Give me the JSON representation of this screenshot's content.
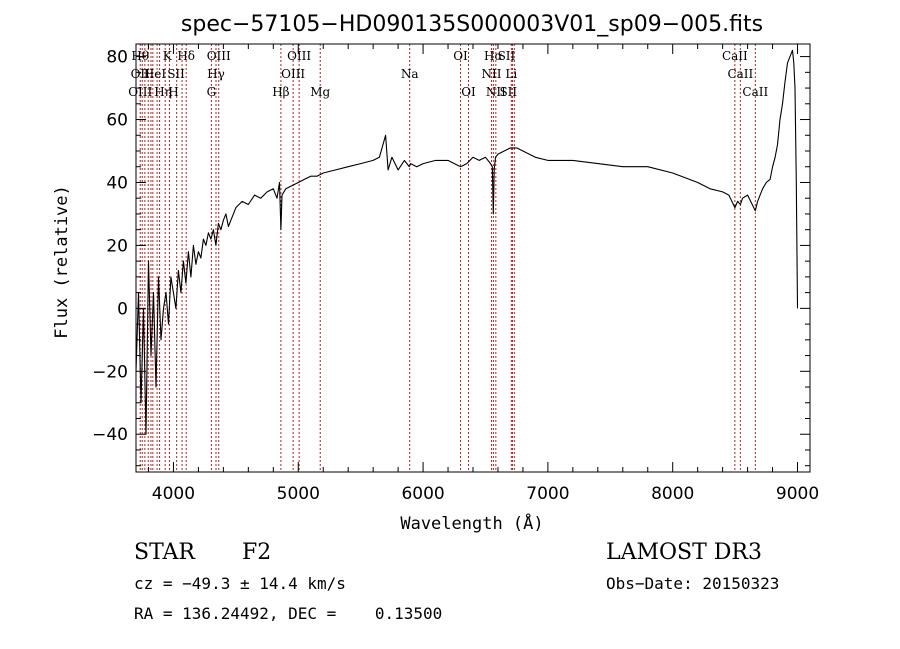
{
  "chart_data": {
    "type": "line",
    "title": "spec−57105−HD090135S000003V01_sp09−005.fits",
    "xlabel": "Wavelength (Å)",
    "ylabel": "Flux (relative)",
    "xlim": [
      3700,
      9100
    ],
    "ylim": [
      -52,
      84
    ],
    "xticks": [
      {
        "value": 4000,
        "label": "4000"
      },
      {
        "value": 5000,
        "label": "5000"
      },
      {
        "value": 6000,
        "label": "6000"
      },
      {
        "value": 7000,
        "label": "7000"
      },
      {
        "value": 8000,
        "label": "8000"
      },
      {
        "value": 9000,
        "label": "9000"
      }
    ],
    "yticks": [
      {
        "value": -40,
        "label": "−40"
      },
      {
        "value": -20,
        "label": "−20"
      },
      {
        "value": 0,
        "label": "0"
      },
      {
        "value": 20,
        "label": "20"
      },
      {
        "value": 40,
        "label": "40"
      },
      {
        "value": 60,
        "label": "60"
      },
      {
        "value": 80,
        "label": "80"
      }
    ],
    "series": [
      {
        "color": "#000000",
        "x": [
          3700,
          3720,
          3740,
          3760,
          3780,
          3800,
          3820,
          3840,
          3860,
          3880,
          3900,
          3920,
          3940,
          3960,
          3980,
          4000,
          4020,
          4040,
          4060,
          4080,
          4100,
          4120,
          4140,
          4160,
          4180,
          4200,
          4220,
          4240,
          4260,
          4280,
          4300,
          4320,
          4340,
          4360,
          4380,
          4400,
          4420,
          4440,
          4460,
          4480,
          4500,
          4550,
          4600,
          4650,
          4700,
          4750,
          4800,
          4830,
          4850,
          4861,
          4870,
          4900,
          4950,
          5000,
          5050,
          5100,
          5150,
          5200,
          5300,
          5400,
          5500,
          5600,
          5650,
          5700,
          5720,
          5750,
          5800,
          5850,
          5890,
          5900,
          5950,
          6000,
          6100,
          6200,
          6300,
          6350,
          6400,
          6450,
          6500,
          6540,
          6555,
          6563,
          6570,
          6580,
          6600,
          6650,
          6700,
          6750,
          6800,
          6900,
          7000,
          7200,
          7400,
          7600,
          7800,
          8000,
          8200,
          8300,
          8400,
          8450,
          8498,
          8520,
          8542,
          8560,
          8600,
          8662,
          8680,
          8700,
          8720,
          8750,
          8780,
          8800,
          8820,
          8840,
          8860,
          8880,
          8900,
          8920,
          8940,
          8960,
          8970,
          8980,
          8990,
          8995,
          9000
        ],
        "y": [
          -20,
          5,
          -30,
          0,
          -40,
          15,
          -15,
          5,
          -25,
          10,
          -10,
          0,
          5,
          -5,
          10,
          5,
          0,
          12,
          5,
          15,
          8,
          18,
          10,
          20,
          14,
          18,
          16,
          22,
          20,
          24,
          22,
          25,
          20,
          27,
          25,
          28,
          30,
          26,
          28,
          30,
          32,
          34,
          33,
          36,
          35,
          37,
          38,
          35,
          40,
          25,
          36,
          38,
          39,
          40,
          41,
          42,
          42,
          43,
          44,
          45,
          46,
          47,
          48,
          55,
          44,
          48,
          44,
          47,
          45,
          46,
          45,
          46,
          47,
          47,
          45,
          46,
          48,
          47,
          48,
          46,
          45,
          30,
          44,
          48,
          49,
          50,
          51,
          51,
          50,
          48,
          47,
          47,
          46,
          45,
          45,
          43,
          40,
          38,
          37,
          36,
          32,
          34,
          33,
          35,
          36,
          31,
          34,
          36,
          38,
          40,
          41,
          45,
          48,
          52,
          60,
          65,
          72,
          78,
          80,
          82,
          78,
          70,
          40,
          20,
          0
        ]
      }
    ],
    "lines": [
      {
        "wavelength": 3734,
        "labels": [
          "Hθ",
          "OII",
          "OIII"
        ]
      },
      {
        "wavelength": 3750,
        "labels": [],
        "dash": true
      },
      {
        "wavelength": 3771,
        "labels": []
      },
      {
        "wavelength": 3798,
        "labels": []
      },
      {
        "wavelength": 3820,
        "labels": [
          "HeI"
        ]
      },
      {
        "wavelength": 3835,
        "labels": []
      },
      {
        "wavelength": 3869,
        "labels": [
          "Hη"
        ]
      },
      {
        "wavelength": 3889,
        "labels": []
      },
      {
        "wavelength": 3934,
        "labels": [
          "K"
        ]
      },
      {
        "wavelength": 3968,
        "labels": [
          "H"
        ]
      },
      {
        "wavelength": 4026,
        "labels": []
      },
      {
        "wavelength": 4069,
        "labels": [
          "SII"
        ]
      },
      {
        "wavelength": 4102,
        "labels": [
          "Hδ"
        ]
      },
      {
        "wavelength": 4304,
        "labels": [
          "G"
        ]
      },
      {
        "wavelength": 4341,
        "labels": [
          "Hγ"
        ]
      },
      {
        "wavelength": 4363,
        "labels": [
          "OIII"
        ]
      },
      {
        "wavelength": 4861,
        "labels": [
          "Hβ"
        ]
      },
      {
        "wavelength": 4959,
        "labels": [
          "OIII"
        ]
      },
      {
        "wavelength": 5007,
        "labels": [
          "OIII"
        ]
      },
      {
        "wavelength": 5176,
        "labels": [
          "Mg"
        ]
      },
      {
        "wavelength": 5893,
        "labels": [
          "Na"
        ]
      },
      {
        "wavelength": 6300,
        "labels": [
          "OI"
        ]
      },
      {
        "wavelength": 6364,
        "labels": [
          "OI"
        ]
      },
      {
        "wavelength": 6548,
        "labels": [
          "NII"
        ]
      },
      {
        "wavelength": 6563,
        "labels": [
          "Hα"
        ]
      },
      {
        "wavelength": 6583,
        "labels": [
          "NII"
        ]
      },
      {
        "wavelength": 6707,
        "labels": [
          "Li"
        ]
      },
      {
        "wavelength": 6716,
        "labels": [
          "SII"
        ]
      },
      {
        "wavelength": 6731,
        "labels": [
          "SII"
        ]
      },
      {
        "wavelength": 8498,
        "labels": [
          "CaII"
        ]
      },
      {
        "wavelength": 8542,
        "labels": [
          "CaII"
        ]
      },
      {
        "wavelength": 8662,
        "labels": [
          "CaII"
        ]
      }
    ],
    "line_color": "#b22222",
    "grid": false,
    "legend": "none"
  },
  "info": {
    "class": "STAR",
    "subclass": "F2",
    "survey": "LAMOST DR3",
    "cz": "cz = −49.3 ± 14.4 km/s",
    "obs_date": "Obs−Date: 20150323",
    "coords": "RA = 136.24492, DEC =    0.13500"
  }
}
